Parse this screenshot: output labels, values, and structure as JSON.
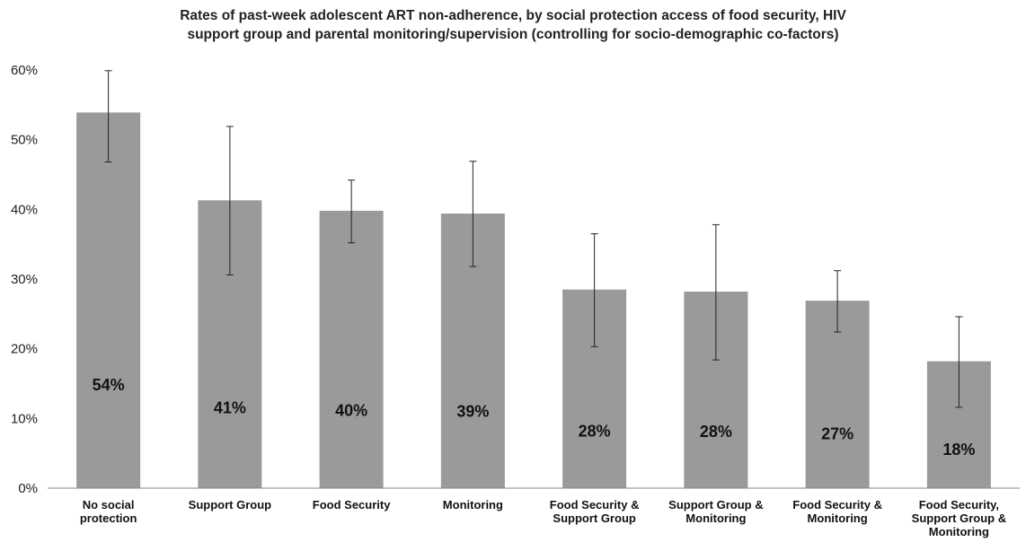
{
  "chart_data": {
    "type": "bar",
    "title": [
      "Rates of past-week adolescent ART non-adherence, by social protection access of food security, HIV",
      "support group and parental monitoring/supervision (controlling for socio-demographic co-factors)"
    ],
    "categories": [
      [
        "No social",
        "protection"
      ],
      [
        "Support Group"
      ],
      [
        "Food Security"
      ],
      [
        "Monitoring"
      ],
      [
        "Food Security &",
        "Support Group"
      ],
      [
        "Support Group &",
        "Monitoring"
      ],
      [
        "Food Security &",
        "Monitoring"
      ],
      [
        "Food Security,",
        "Support Group &",
        "Monitoring"
      ]
    ],
    "values": [
      53.9,
      41.3,
      39.8,
      39.4,
      28.5,
      28.2,
      26.9,
      18.2
    ],
    "data_labels": [
      "54%",
      "41%",
      "40%",
      "39%",
      "28%",
      "28%",
      "27%",
      "18%"
    ],
    "error_low": [
      46.8,
      30.6,
      35.2,
      31.8,
      20.3,
      18.4,
      22.4,
      11.6
    ],
    "error_high": [
      59.9,
      51.9,
      44.2,
      46.9,
      36.5,
      37.8,
      31.2,
      24.6
    ],
    "ylim": [
      0,
      60
    ],
    "y_ticks": [
      0,
      10,
      20,
      30,
      40,
      50,
      60
    ],
    "y_tick_labels": [
      "0%",
      "10%",
      "20%",
      "30%",
      "40%",
      "50%",
      "60%"
    ],
    "grid": false,
    "colors": {
      "bar": "#9a9a9a",
      "axis": "#888888",
      "error": "#222222"
    }
  }
}
